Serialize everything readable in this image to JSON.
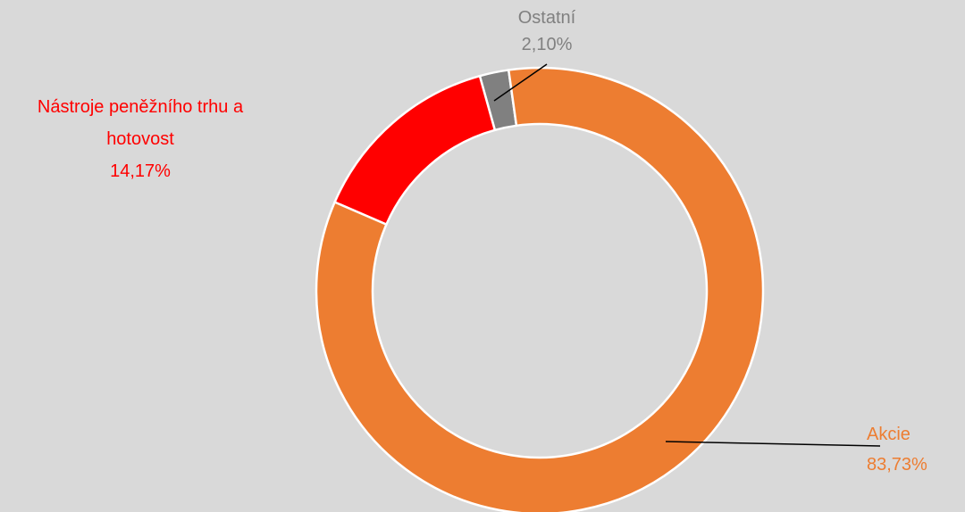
{
  "chart_data": {
    "type": "donut",
    "categories": [
      "Akcie",
      "Nástroje peněžního trhu a hotovost",
      "Ostatní"
    ],
    "values": [
      83.73,
      14.17,
      2.1
    ],
    "value_labels": [
      "83,73%",
      "14,17%",
      "2,10%"
    ],
    "colors": [
      "#ED7D31",
      "#FF0000",
      "#808080"
    ]
  }
}
